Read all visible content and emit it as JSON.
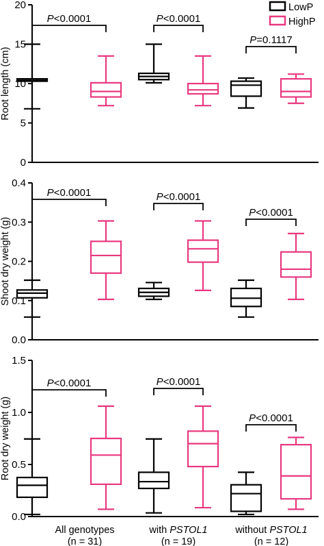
{
  "legend": [
    {
      "label": "LowP",
      "color": "#000000"
    },
    {
      "label": "HighP",
      "color": "#e8387f"
    }
  ],
  "categories": [
    {
      "line1": "All genotypes",
      "line2": "(n = 31)",
      "italic": ""
    },
    {
      "line1": "with ",
      "line2": "(n = 19)",
      "italic": "PSTOL1"
    },
    {
      "line1": "without ",
      "line2": "(n = 12)",
      "italic": "PSTOL1"
    }
  ],
  "chart_data": [
    {
      "type": "box",
      "ylabel": "Root length (cm)",
      "ylim": [
        0,
        20
      ],
      "yticks": [
        "0",
        "5",
        "10",
        "15",
        "20"
      ],
      "grid": false,
      "legend_position": "top-right",
      "series": [
        {
          "name": "LowP",
          "color": "#000000",
          "boxes": [
            {
              "min": 6.8,
              "q1": 10.3,
              "median": 10.4,
              "q3": 10.6,
              "max": 15.0
            },
            {
              "min": 10.1,
              "q1": 10.5,
              "median": 10.9,
              "q3": 11.3,
              "max": 15.0
            },
            {
              "min": 6.9,
              "q1": 8.4,
              "median": 9.8,
              "q3": 10.3,
              "max": 10.7
            }
          ]
        },
        {
          "name": "HighP",
          "color": "#e8387f",
          "boxes": [
            {
              "min": 7.2,
              "q1": 8.3,
              "median": 9.0,
              "q3": 10.1,
              "max": 13.5
            },
            {
              "min": 7.2,
              "q1": 8.7,
              "median": 9.2,
              "q3": 10.0,
              "max": 13.5
            },
            {
              "min": 7.5,
              "q1": 8.3,
              "median": 9.0,
              "q3": 10.6,
              "max": 11.2
            }
          ]
        }
      ],
      "comparisons": [
        {
          "p": "<0.0001"
        },
        {
          "p": "<0.0001"
        },
        {
          "p": "=0.1117"
        }
      ]
    },
    {
      "type": "box",
      "ylabel": "Shoot dry weight (g)",
      "ylim": [
        0,
        0.4
      ],
      "yticks": [
        "0.0",
        "0.1",
        "0.2",
        "0.3",
        "0.4"
      ],
      "grid": false,
      "series": [
        {
          "name": "LowP",
          "color": "#000000",
          "boxes": [
            {
              "min": 0.058,
              "q1": 0.107,
              "median": 0.119,
              "q3": 0.127,
              "max": 0.152
            },
            {
              "min": 0.103,
              "q1": 0.111,
              "median": 0.121,
              "q3": 0.131,
              "max": 0.146
            },
            {
              "min": 0.058,
              "q1": 0.085,
              "median": 0.106,
              "q3": 0.131,
              "max": 0.152
            }
          ]
        },
        {
          "name": "HighP",
          "color": "#e8387f",
          "boxes": [
            {
              "min": 0.103,
              "q1": 0.17,
              "median": 0.215,
              "q3": 0.251,
              "max": 0.303
            },
            {
              "min": 0.126,
              "q1": 0.198,
              "median": 0.232,
              "q3": 0.254,
              "max": 0.303
            },
            {
              "min": 0.103,
              "q1": 0.16,
              "median": 0.18,
              "q3": 0.224,
              "max": 0.271
            }
          ]
        }
      ],
      "comparisons": [
        {
          "p": "<0.0001"
        },
        {
          "p": "<0.0001"
        },
        {
          "p": "<0.0001"
        }
      ]
    },
    {
      "type": "box",
      "ylabel": "Root dry weight (g)",
      "ylim": [
        0,
        1.5
      ],
      "yticks": [
        "0.0",
        "0.5",
        "1.0",
        "1.5"
      ],
      "grid": false,
      "series": [
        {
          "name": "LowP",
          "color": "#000000",
          "boxes": [
            {
              "min": 0.02,
              "q1": 0.185,
              "median": 0.3,
              "q3": 0.375,
              "max": 0.745
            },
            {
              "min": 0.035,
              "q1": 0.27,
              "median": 0.335,
              "q3": 0.425,
              "max": 0.745
            },
            {
              "min": 0.02,
              "q1": 0.05,
              "median": 0.22,
              "q3": 0.305,
              "max": 0.425
            }
          ]
        },
        {
          "name": "HighP",
          "color": "#e8387f",
          "boxes": [
            {
              "min": 0.07,
              "q1": 0.31,
              "median": 0.59,
              "q3": 0.75,
              "max": 1.06
            },
            {
              "min": 0.085,
              "q1": 0.48,
              "median": 0.7,
              "q3": 0.82,
              "max": 1.06
            },
            {
              "min": 0.07,
              "q1": 0.17,
              "median": 0.39,
              "q3": 0.69,
              "max": 0.76
            }
          ]
        }
      ],
      "comparisons": [
        {
          "p": "<0.0001"
        },
        {
          "p": "<0.0001"
        },
        {
          "p": "<0.0001"
        }
      ]
    }
  ]
}
